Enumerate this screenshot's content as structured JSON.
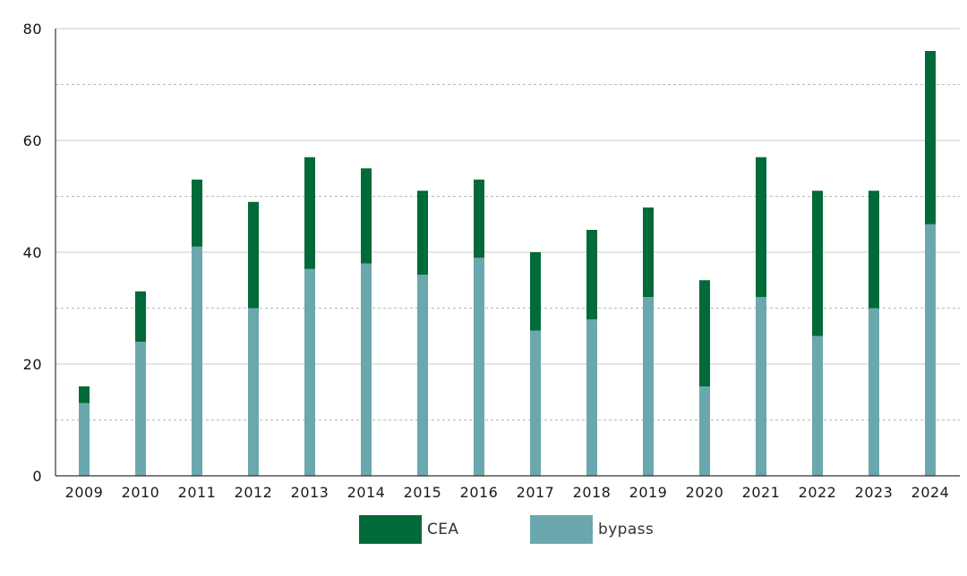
{
  "chart_data": {
    "type": "bar",
    "stacked": true,
    "categories": [
      "2009",
      "2010",
      "2011",
      "2012",
      "2013",
      "2014",
      "2015",
      "2016",
      "2017",
      "2018",
      "2019",
      "2020",
      "2021",
      "2022",
      "2023",
      "2024"
    ],
    "series": [
      {
        "name": "bypass",
        "color": "#6aa8ad",
        "values": [
          13,
          24,
          41,
          30,
          37,
          38,
          36,
          39,
          26,
          28,
          32,
          16,
          32,
          25,
          30,
          45
        ]
      },
      {
        "name": "CEA",
        "color": "#006a38",
        "values": [
          3,
          9,
          12,
          19,
          20,
          17,
          15,
          14,
          14,
          16,
          16,
          19,
          25,
          26,
          21,
          31
        ]
      }
    ],
    "ylim": [
      0,
      80
    ],
    "y_ticks": [
      "0",
      "20",
      "40",
      "60",
      "80"
    ],
    "grid": "horizontal, dashed at minor intervals",
    "legend_placement": "bottom-center",
    "title": "",
    "xlabel": "",
    "ylabel": ""
  },
  "legend": {
    "items": [
      {
        "label": "CEA",
        "color": "#006a38"
      },
      {
        "label": "bypass",
        "color": "#6aa8ad"
      }
    ]
  }
}
